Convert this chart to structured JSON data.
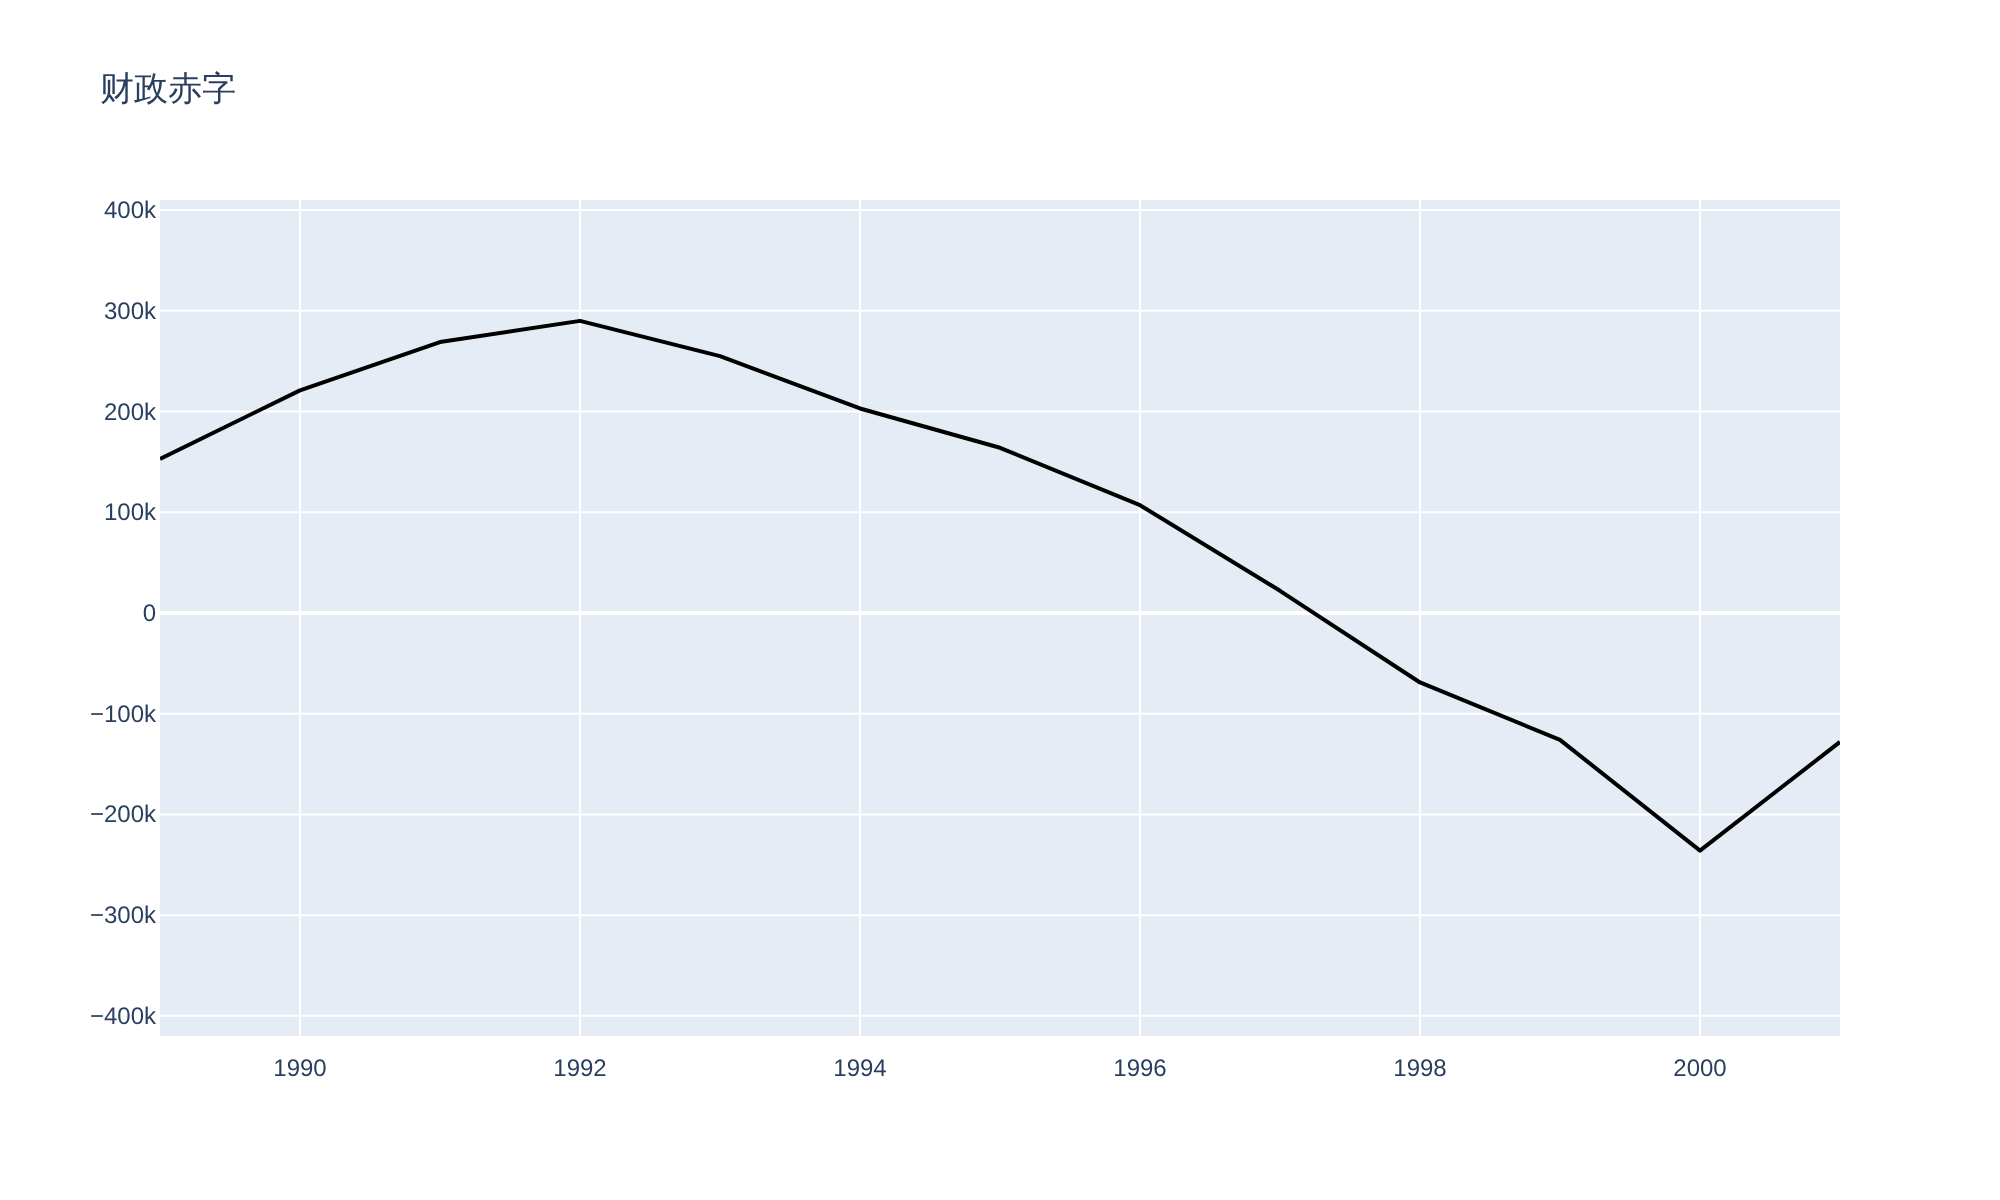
{
  "chart_data": {
    "type": "line",
    "title": "财政赤字",
    "x": [
      1989,
      1990,
      1991,
      1992,
      1993,
      1994,
      1995,
      1996,
      1997,
      1998,
      1999,
      2000,
      2001
    ],
    "series": [
      {
        "color": "#000000",
        "values": [
          153000,
          221000,
          269000,
          290000,
          255000,
          203000,
          164000,
          107000,
          22000,
          -69000,
          -126000,
          -236000,
          -128000
        ]
      }
    ],
    "xlim": [
      1989,
      2001
    ],
    "xticks": [
      1990,
      1992,
      1994,
      1996,
      1998,
      2000
    ],
    "ylim": [
      -420000,
      410000
    ],
    "yticks": [
      {
        "value": -400000,
        "label": "−400k"
      },
      {
        "value": -300000,
        "label": "−300k"
      },
      {
        "value": -200000,
        "label": "−200k"
      },
      {
        "value": -100000,
        "label": "−100k"
      },
      {
        "value": 0,
        "label": "0"
      },
      {
        "value": 100000,
        "label": "100k"
      },
      {
        "value": 200000,
        "label": "200k"
      },
      {
        "value": 300000,
        "label": "300k"
      },
      {
        "value": 400000,
        "label": "400k"
      }
    ],
    "grid": true,
    "marker": "none",
    "line_style": "solid"
  }
}
